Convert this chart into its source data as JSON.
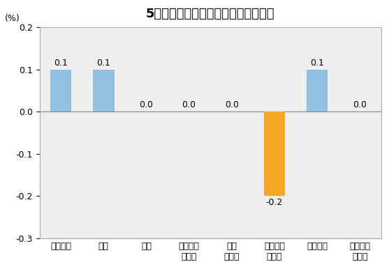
{
  "title": "5月份居民消费价格分类别环比涨跌幅",
  "ylabel": "(%)",
  "categories": [
    "食品烟酒",
    "衣着",
    "居住",
    "生活用品\n及服务",
    "交通\n和通信",
    "教育文化\n和娱乐",
    "医疗保健",
    "其他用品\n和服务"
  ],
  "values": [
    0.1,
    0.1,
    0.0,
    0.0,
    0.0,
    -0.2,
    0.1,
    0.0
  ],
  "bar_colors": [
    "#92c0e0",
    "#92c0e0",
    "#92c0e0",
    "#92c0e0",
    "#92c0e0",
    "#f5a623",
    "#92c0e0",
    "#92c0e0"
  ],
  "ylim": [
    -0.3,
    0.2
  ],
  "yticks": [
    -0.3,
    -0.2,
    -0.1,
    0.0,
    0.1,
    0.2
  ],
  "bar_width": 0.5,
  "title_fontsize": 13,
  "label_fontsize": 9,
  "tick_fontsize": 9,
  "ylabel_fontsize": 9,
  "background_color": "#ffffff",
  "plot_background": "#efefef"
}
